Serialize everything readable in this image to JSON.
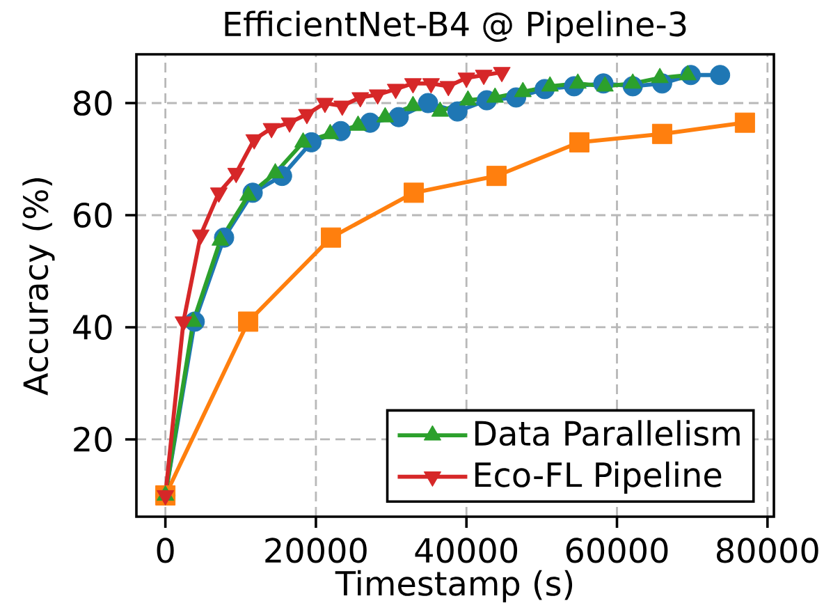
{
  "chart_data": {
    "type": "line",
    "title": "EfficientNet-B4 @ Pipeline-3",
    "xlabel": "Timestamp (s)",
    "ylabel": "Accuracy (%)",
    "xlim": [
      -3850,
      80850
    ],
    "ylim": [
      6.2,
      88.7
    ],
    "xticks": [
      0,
      20000,
      40000,
      60000,
      80000
    ],
    "yticks": [
      20,
      40,
      60,
      80
    ],
    "grid": true,
    "legend": "bottom right",
    "line_style": "solid",
    "series": [
      {
        "color": "#1f77b4",
        "marker": "circle",
        "x": [
          0,
          3900,
          7800,
          11600,
          15500,
          19400,
          23300,
          27200,
          31000,
          34900,
          38800,
          42700,
          46600,
          50400,
          54300,
          58200,
          62100,
          66000,
          69800,
          73700
        ],
        "values": [
          10,
          41,
          56,
          64,
          67,
          73,
          75,
          76.5,
          77.5,
          80,
          78.5,
          80.5,
          81,
          82.5,
          83,
          83.5,
          83,
          83.5,
          85,
          85
        ]
      },
      {
        "color": "#ff7f0e",
        "marker": "square",
        "x": [
          0,
          11000,
          22000,
          33000,
          44000,
          55000,
          66000,
          77000
        ],
        "values": [
          10,
          41,
          56,
          64,
          67,
          73,
          74.5,
          76.5
        ]
      },
      {
        "name": "Data Parallelism",
        "color": "#2ca02c",
        "marker": "triangle",
        "x": [
          0,
          3700,
          7300,
          11000,
          14600,
          18300,
          21900,
          25600,
          29200,
          32900,
          36500,
          40200,
          43800,
          47500,
          51100,
          54800,
          58400,
          62100,
          65700,
          69400
        ],
        "values": [
          10,
          41,
          55.5,
          63.5,
          67.5,
          73,
          74.5,
          76,
          77.5,
          79.5,
          78.5,
          80.5,
          81,
          82,
          83,
          83.5,
          83,
          83.5,
          84.5,
          85
        ]
      },
      {
        "name": "Eco-FL Pipeline",
        "color": "#d62728",
        "marker": "triangle_down",
        "x": [
          0,
          2400,
          4700,
          7100,
          9400,
          11800,
          14100,
          16500,
          18800,
          21200,
          23500,
          25900,
          28200,
          30600,
          32900,
          35300,
          37600,
          40000,
          42300,
          44700
        ],
        "values": [
          10,
          41,
          56.5,
          64,
          67.5,
          73.5,
          75.5,
          76.5,
          78,
          80,
          79.5,
          81,
          81.5,
          82.5,
          83.5,
          83.5,
          83,
          84.5,
          85,
          85.5
        ]
      }
    ]
  }
}
